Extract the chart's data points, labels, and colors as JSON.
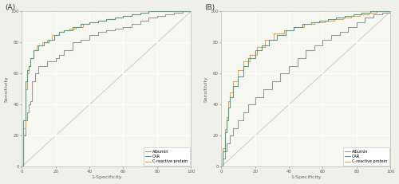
{
  "panel_A_label": "(A)",
  "panel_B_label": "(B)",
  "xlabel": "1-Specificity",
  "ylabel": "Sensitivity",
  "xlim": [
    0,
    100
  ],
  "ylim": [
    0,
    100
  ],
  "xticks": [
    0,
    20,
    40,
    60,
    80,
    100
  ],
  "yticks": [
    0,
    20,
    40,
    60,
    80,
    100
  ],
  "color_albumin": "#999999",
  "color_CAR": "#5a9e8a",
  "color_CRP": "#e8a44a",
  "legend_labels": [
    "Albumin",
    "CAR",
    "C-reactive protein"
  ],
  "bg_color": "#f7f7f2",
  "grid_color": "#ffffff",
  "diag_color": "#cccccc",
  "linewidth": 0.8,
  "panel_A": {
    "albumin_x": [
      0,
      1,
      1,
      2,
      2,
      3,
      3,
      4,
      4,
      5,
      5,
      6,
      6,
      8,
      8,
      10,
      10,
      15,
      15,
      20,
      20,
      22,
      22,
      25,
      25,
      30,
      30,
      35,
      35,
      40,
      40,
      45,
      45,
      50,
      50,
      55,
      55,
      60,
      60,
      65,
      65,
      70,
      70,
      75,
      75,
      80,
      80,
      85,
      85,
      90,
      90,
      95,
      95,
      100,
      100
    ],
    "albumin_y": [
      0,
      0,
      20,
      20,
      30,
      30,
      35,
      35,
      40,
      40,
      42,
      42,
      55,
      55,
      60,
      60,
      65,
      65,
      68,
      68,
      70,
      70,
      72,
      72,
      75,
      75,
      80,
      80,
      82,
      82,
      85,
      85,
      87,
      87,
      88,
      88,
      89,
      89,
      90,
      90,
      92,
      92,
      94,
      94,
      96,
      96,
      97,
      97,
      98,
      98,
      99,
      99,
      100,
      100,
      100
    ],
    "CAR_x": [
      0,
      1,
      1,
      2,
      2,
      3,
      3,
      4,
      4,
      5,
      5,
      7,
      7,
      10,
      10,
      13,
      13,
      16,
      16,
      19,
      19,
      22,
      22,
      25,
      25,
      30,
      30,
      35,
      35,
      40,
      40,
      45,
      45,
      50,
      50,
      55,
      55,
      60,
      60,
      65,
      65,
      70,
      70,
      75,
      75,
      80,
      80,
      85,
      85,
      90,
      90,
      95,
      95,
      100,
      100
    ],
    "CAR_y": [
      0,
      0,
      30,
      30,
      55,
      55,
      62,
      62,
      65,
      65,
      70,
      70,
      75,
      75,
      78,
      78,
      80,
      80,
      82,
      82,
      85,
      85,
      87,
      87,
      88,
      88,
      90,
      90,
      92,
      92,
      93,
      93,
      94,
      94,
      95,
      95,
      96,
      96,
      97,
      97,
      98,
      98,
      99,
      99,
      100,
      100,
      100,
      100,
      100,
      100,
      100,
      100,
      100,
      100,
      100
    ],
    "CRP_x": [
      0,
      1,
      1,
      2,
      2,
      3,
      3,
      4,
      4,
      5,
      5,
      7,
      7,
      9,
      9,
      12,
      12,
      15,
      15,
      18,
      18,
      22,
      22,
      25,
      25,
      28,
      28,
      32,
      32,
      36,
      36,
      40,
      40,
      45,
      45,
      50,
      50,
      55,
      55,
      60,
      60,
      65,
      65,
      70,
      70,
      75,
      75,
      80,
      80,
      85,
      85,
      90,
      90,
      95,
      95,
      100,
      100
    ],
    "CRP_y": [
      0,
      0,
      25,
      25,
      50,
      50,
      60,
      60,
      65,
      65,
      70,
      70,
      75,
      75,
      78,
      78,
      80,
      80,
      82,
      82,
      85,
      85,
      87,
      87,
      88,
      88,
      89,
      89,
      90,
      90,
      92,
      92,
      93,
      93,
      94,
      94,
      95,
      95,
      96,
      96,
      97,
      97,
      98,
      98,
      99,
      99,
      100,
      100,
      100,
      100,
      100,
      100,
      100,
      100,
      100,
      100,
      100
    ]
  },
  "panel_B": {
    "albumin_x": [
      0,
      1,
      1,
      2,
      2,
      3,
      3,
      5,
      5,
      7,
      7,
      10,
      10,
      13,
      13,
      16,
      16,
      20,
      20,
      25,
      25,
      30,
      30,
      35,
      35,
      40,
      40,
      45,
      45,
      50,
      50,
      55,
      55,
      60,
      60,
      65,
      65,
      70,
      70,
      75,
      75,
      80,
      80,
      85,
      85,
      90,
      90,
      95,
      95,
      100,
      100
    ],
    "albumin_y": [
      0,
      0,
      5,
      5,
      10,
      10,
      15,
      15,
      20,
      20,
      25,
      25,
      30,
      30,
      35,
      35,
      40,
      40,
      45,
      45,
      50,
      50,
      55,
      55,
      60,
      60,
      65,
      65,
      70,
      70,
      75,
      75,
      78,
      78,
      82,
      82,
      85,
      85,
      87,
      87,
      90,
      90,
      93,
      93,
      96,
      96,
      98,
      98,
      99,
      99,
      100
    ],
    "CAR_x": [
      0,
      1,
      1,
      2,
      2,
      3,
      3,
      4,
      4,
      5,
      5,
      7,
      7,
      10,
      10,
      13,
      13,
      16,
      16,
      20,
      20,
      24,
      24,
      28,
      28,
      33,
      33,
      38,
      38,
      43,
      43,
      48,
      48,
      53,
      53,
      58,
      58,
      63,
      63,
      68,
      68,
      73,
      73,
      78,
      78,
      83,
      83,
      88,
      88,
      93,
      93,
      97,
      97,
      100,
      100
    ],
    "CAR_y": [
      0,
      0,
      10,
      10,
      22,
      22,
      30,
      30,
      38,
      38,
      45,
      45,
      52,
      52,
      58,
      58,
      65,
      65,
      70,
      70,
      75,
      75,
      78,
      78,
      82,
      82,
      85,
      85,
      88,
      88,
      90,
      90,
      92,
      92,
      93,
      93,
      94,
      94,
      95,
      95,
      96,
      96,
      97,
      97,
      98,
      98,
      99,
      99,
      100,
      100,
      100,
      100,
      100,
      100,
      100
    ],
    "CRP_x": [
      0,
      1,
      1,
      2,
      2,
      3,
      3,
      4,
      4,
      5,
      5,
      7,
      7,
      10,
      10,
      13,
      13,
      17,
      17,
      21,
      21,
      26,
      26,
      31,
      31,
      37,
      37,
      43,
      43,
      49,
      49,
      55,
      55,
      61,
      61,
      67,
      67,
      72,
      72,
      77,
      77,
      82,
      82,
      87,
      87,
      92,
      92,
      96,
      96,
      100,
      100
    ],
    "CRP_y": [
      0,
      0,
      12,
      12,
      24,
      24,
      32,
      32,
      42,
      42,
      48,
      48,
      55,
      55,
      62,
      62,
      68,
      68,
      72,
      72,
      77,
      77,
      82,
      82,
      86,
      86,
      88,
      88,
      90,
      90,
      92,
      92,
      93,
      93,
      94,
      94,
      95,
      95,
      96,
      96,
      97,
      97,
      98,
      98,
      99,
      99,
      100,
      100,
      100,
      100,
      100
    ]
  }
}
